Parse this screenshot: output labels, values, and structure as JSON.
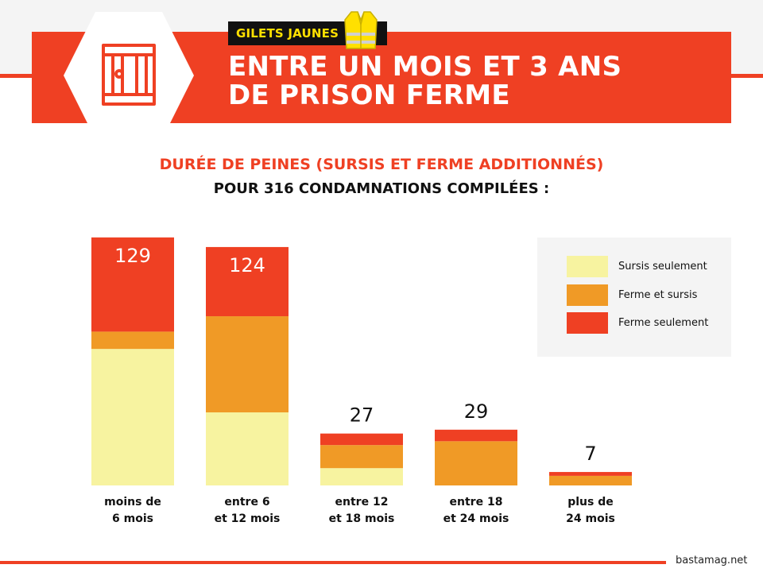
{
  "header": {
    "badge": "GILETS JAUNES",
    "title_line1": "ENTRE UN MOIS ET 3 ANS",
    "title_line2": "DE PRISON FERME",
    "prison_icon": "prison-door-icon",
    "vest_icon": "yellow-vest-icon"
  },
  "subtitle_line1": "DURÉE DE PEINES (SURSIS ET FERME ADDITIONNÉS)",
  "subtitle_line2": "POUR 316 CONDAMNATIONS COMPILÉES :",
  "footer": {
    "source": "bastamag.net"
  },
  "colors": {
    "brand_red": "#ef4023",
    "sursis": "#f7f3a0",
    "ferme_sursis": "#f09a26",
    "ferme": "#ef4023",
    "legend_bg": "#f4f4f4"
  },
  "chart_data": {
    "type": "bar",
    "stacked": true,
    "categories": [
      [
        "moins de",
        "6 mois"
      ],
      [
        "entre 6",
        "et 12 mois"
      ],
      [
        "entre 12",
        "et 18 mois"
      ],
      [
        "entre 18",
        "et 24 mois"
      ],
      [
        "plus de",
        "24 mois"
      ]
    ],
    "totals": [
      129,
      124,
      27,
      29,
      7
    ],
    "series": [
      {
        "name": "Sursis seulement",
        "values": [
          71,
          38,
          9,
          0,
          0
        ]
      },
      {
        "name": "Ferme et sursis",
        "values": [
          9,
          50,
          12,
          23,
          5
        ]
      },
      {
        "name": "Ferme seulement",
        "values": [
          49,
          36,
          6,
          6,
          2
        ]
      }
    ],
    "legend_position": "top-right",
    "grid": false,
    "axes_visible": false
  }
}
